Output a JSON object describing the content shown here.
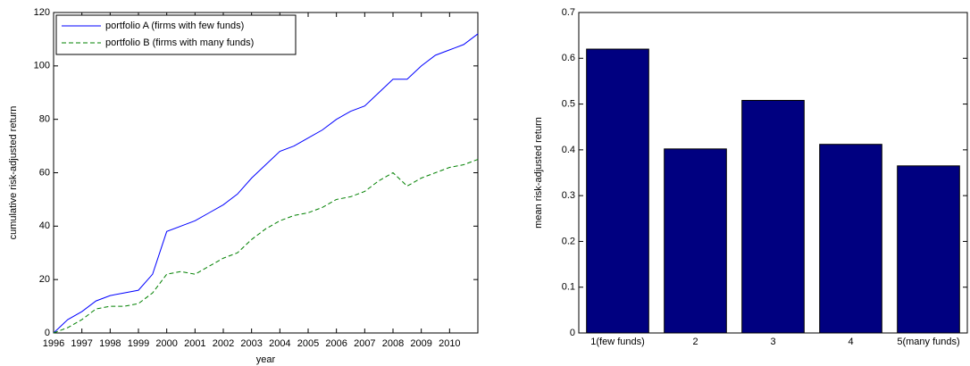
{
  "chart_data": [
    {
      "type": "line",
      "xlabel": "year",
      "ylabel": "cumulative risk-adjusted return",
      "x": [
        1996,
        1996.5,
        1997,
        1997.5,
        1998,
        1998.5,
        1999,
        1999.5,
        2000,
        2000.5,
        2001,
        2001.5,
        2002,
        2002.5,
        2003,
        2003.5,
        2004,
        2004.5,
        2005,
        2005.5,
        2006,
        2006.5,
        2007,
        2007.5,
        2008,
        2008.5,
        2009,
        2009.5,
        2010,
        2010.5,
        2011
      ],
      "series": [
        {
          "name": "portfolio A (firms with few funds)",
          "color": "#0000ff",
          "dash": false,
          "values": [
            0,
            5,
            8,
            12,
            14,
            15,
            16,
            22,
            38,
            40,
            42,
            45,
            48,
            52,
            58,
            63,
            68,
            70,
            73,
            76,
            80,
            83,
            85,
            90,
            95,
            95,
            100,
            104,
            106,
            108,
            112
          ]
        },
        {
          "name": "portfolio B (firms with many funds)",
          "color": "#008000",
          "dash": true,
          "values": [
            0,
            2,
            5,
            9,
            10,
            10,
            11,
            15,
            22,
            23,
            22,
            25,
            28,
            30,
            35,
            39,
            42,
            44,
            45,
            47,
            50,
            51,
            53,
            57,
            60,
            55,
            58,
            60,
            62,
            63,
            65
          ]
        }
      ],
      "xlim": [
        1996,
        2011
      ],
      "xticks": [
        1996,
        1997,
        1998,
        1999,
        2000,
        2001,
        2002,
        2003,
        2004,
        2005,
        2006,
        2007,
        2008,
        2009,
        2010
      ],
      "ylim": [
        0,
        120
      ],
      "yticks": [
        0,
        20,
        40,
        60,
        80,
        100,
        120
      ],
      "legend": "upper-left"
    },
    {
      "type": "bar",
      "ylabel": "mean risk-adjusted return",
      "categories": [
        "1(few funds)",
        "2",
        "3",
        "4",
        "5(many funds)"
      ],
      "values": [
        0.62,
        0.402,
        0.508,
        0.412,
        0.365
      ],
      "color": "#000080",
      "ylim": [
        0,
        0.7
      ],
      "yticks": [
        0,
        0.1,
        0.2,
        0.3,
        0.4,
        0.5,
        0.6,
        0.7
      ]
    }
  ]
}
